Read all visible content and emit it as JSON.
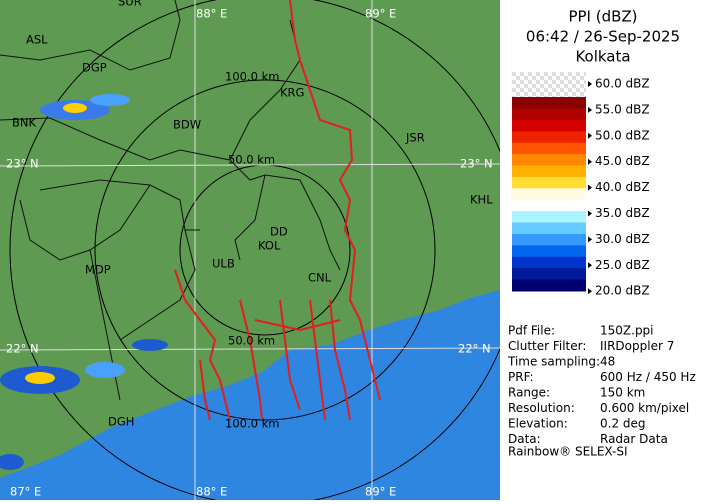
{
  "header": {
    "title": "PPI (dBZ)",
    "time": "06:42 / 26-Sep-2025",
    "station": "Kolkata"
  },
  "legend": {
    "labels": [
      "60.0 dBZ",
      "55.0 dBZ",
      "50.0 dBZ",
      "45.0 dBZ",
      "40.0 dBZ",
      "35.0 dBZ",
      "30.0 dBZ",
      "25.0 dBZ",
      "20.0 dBZ"
    ]
  },
  "info": {
    "rows": [
      [
        "Pdf File:",
        "150Z.ppi"
      ],
      [
        "Clutter Filter:",
        "IIRDoppler 7"
      ],
      [
        "Time sampling:",
        "48"
      ],
      [
        "PRF:",
        "600 Hz / 450 Hz"
      ],
      [
        "Range:",
        "150 km"
      ],
      [
        "Resolution:",
        "0.600 km/pixel"
      ],
      [
        "Elevation:",
        "0.2 deg"
      ],
      [
        "Data:",
        "Radar Data"
      ]
    ],
    "footer": "Rainbow® SELEX-SI"
  },
  "map": {
    "cities": [
      "SUR",
      "ASL",
      "DGP",
      "BNK",
      "BDW",
      "KRG",
      "JSR",
      "KHL",
      "DD",
      "KOL",
      "ULB",
      "CNL",
      "MDP",
      "DGH"
    ],
    "grid_labels": [
      "88° E",
      "89° E",
      "23° N",
      "23° N",
      "22° N",
      "22° N",
      "87° E",
      "88° E",
      "89° E"
    ],
    "range_labels": [
      "100.0 km",
      "50.0 km",
      "50.0 km",
      "100.0 km"
    ]
  }
}
